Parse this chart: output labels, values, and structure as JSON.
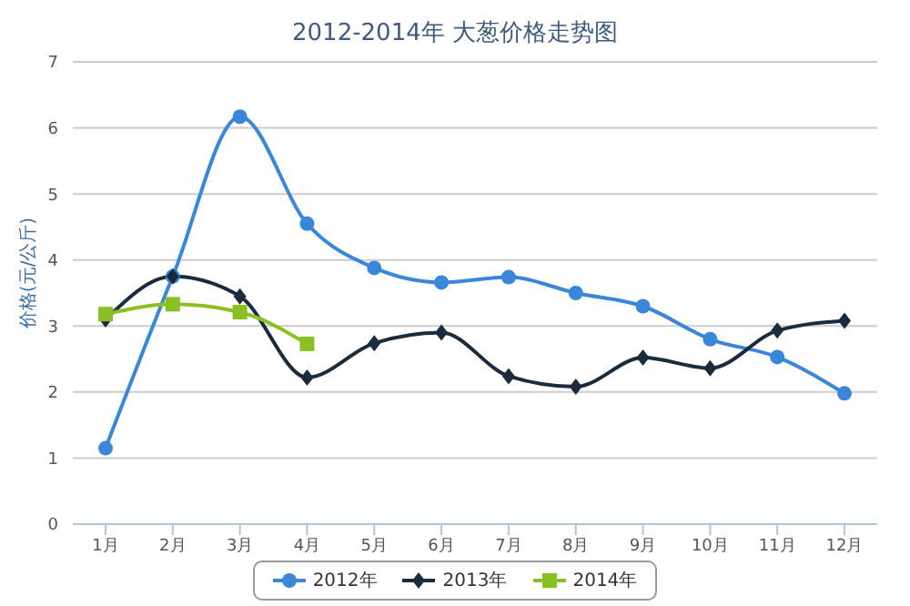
{
  "chart_data": {
    "type": "line",
    "title": "2012-2014年 大葱价格走势图",
    "ylabel": "价格(元/公斤)",
    "categories": [
      "1月",
      "2月",
      "3月",
      "4月",
      "5月",
      "6月",
      "7月",
      "8月",
      "9月",
      "10月",
      "11月",
      "12月"
    ],
    "series": [
      {
        "name": "2012年",
        "color": "#3a87d9",
        "marker": "circle",
        "values": [
          1.15,
          3.75,
          6.17,
          4.55,
          3.88,
          3.66,
          3.74,
          3.5,
          3.3,
          2.8,
          2.53,
          1.98
        ]
      },
      {
        "name": "2013年",
        "color": "#1a2b3c",
        "marker": "diamond",
        "values": [
          3.1,
          3.75,
          3.45,
          2.22,
          2.74,
          2.9,
          2.24,
          2.08,
          2.52,
          2.36,
          2.93,
          3.08
        ]
      },
      {
        "name": "2014年",
        "color": "#8ac023",
        "marker": "square",
        "values": [
          3.18,
          3.33,
          3.21,
          2.73,
          null,
          null,
          null,
          null,
          null,
          null,
          null,
          null
        ]
      }
    ],
    "ylim": [
      0,
      7
    ],
    "yticks": [
      0,
      1,
      2,
      3,
      4,
      5,
      6,
      7
    ],
    "grid": "y",
    "legend": "bottom",
    "line_style": "solid"
  }
}
